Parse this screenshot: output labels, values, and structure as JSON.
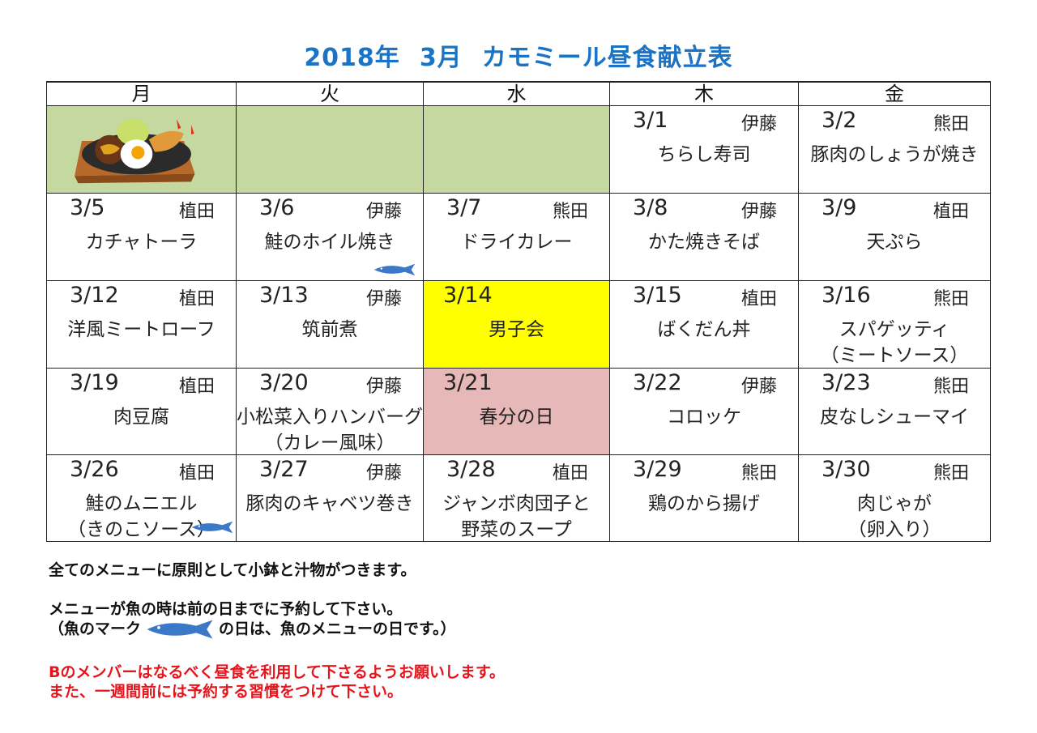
{
  "title": {
    "year": "2018年",
    "month": "3月",
    "name": "カモミール昼食献立表",
    "color": "#1a73c4"
  },
  "weekdays": [
    "月",
    "火",
    "水",
    "木",
    "金"
  ],
  "colors": {
    "empty": "#c5d8a0",
    "boys": "#ffff00",
    "holiday": "#e6b8b7",
    "fish": "#3b78c8"
  },
  "cells": [
    {
      "image": "food-plate-illustration",
      "bg": "empty"
    },
    {
      "bg": "empty"
    },
    {
      "bg": "empty"
    },
    {
      "date": "3/1",
      "name": "伊藤",
      "dish": [
        "ちらし寿司"
      ]
    },
    {
      "date": "3/2",
      "name": "熊田",
      "dish": [
        "豚肉のしょうが焼き"
      ]
    },
    {
      "date": "3/5",
      "name": "植田",
      "dish": [
        "カチャトーラ"
      ]
    },
    {
      "date": "3/6",
      "name": "伊藤",
      "dish": [
        "鮭のホイル焼き"
      ],
      "fish": true
    },
    {
      "date": "3/7",
      "name": "熊田",
      "dish": [
        "ドライカレー"
      ]
    },
    {
      "date": "3/8",
      "name": "伊藤",
      "dish": [
        "かた焼きそば"
      ]
    },
    {
      "date": "3/9",
      "name": "植田",
      "dish": [
        "天ぷら"
      ]
    },
    {
      "date": "3/12",
      "name": "植田",
      "dish": [
        "洋風ミートローフ"
      ]
    },
    {
      "date": "3/13",
      "name": "伊藤",
      "dish": [
        "筑前煮"
      ]
    },
    {
      "date": "3/14",
      "dish": [
        "男子会"
      ],
      "bg": "boys"
    },
    {
      "date": "3/15",
      "name": "植田",
      "dish": [
        "ばくだん丼"
      ]
    },
    {
      "date": "3/16",
      "name": "熊田",
      "dish": [
        "スパゲッティ",
        "（ミートソース）"
      ]
    },
    {
      "date": "3/19",
      "name": "植田",
      "dish": [
        "肉豆腐"
      ]
    },
    {
      "date": "3/20",
      "name": "伊藤",
      "dish": [
        "小松菜入りハンバーグ",
        "（カレー風味）"
      ]
    },
    {
      "date": "3/21",
      "dish": [
        "春分の日"
      ],
      "bg": "holiday"
    },
    {
      "date": "3/22",
      "name": "伊藤",
      "dish": [
        "コロッケ"
      ]
    },
    {
      "date": "3/23",
      "name": "熊田",
      "dish": [
        "皮なしシューマイ"
      ]
    },
    {
      "date": "3/26",
      "name": "植田",
      "dish": [
        "鮭のムニエル",
        "（きのこソース）"
      ],
      "fish": true
    },
    {
      "date": "3/27",
      "name": "伊藤",
      "dish": [
        "豚肉のキャベツ巻き"
      ]
    },
    {
      "date": "3/28",
      "name": "植田",
      "dish": [
        "ジャンボ肉団子と",
        "野菜のスープ"
      ]
    },
    {
      "date": "3/29",
      "name": "熊田",
      "dish": [
        "鶏のから揚げ"
      ]
    },
    {
      "date": "3/30",
      "name": "熊田",
      "dish": [
        "肉じゃが",
        "（卵入り）"
      ]
    }
  ],
  "notes": {
    "line1": "全てのメニューに原則として小鉢と汁物がつきます。",
    "line2": "メニューが魚の時は前の日までに予約して下さい。",
    "line3a": "（魚のマーク",
    "line3b": "の日は、魚のメニューの日です。）",
    "red1": "Bのメンバーはなるべく昼食を利用して下さるようお願いします。",
    "red2": "また、一週間前には予約する習慣をつけて下さい。"
  }
}
